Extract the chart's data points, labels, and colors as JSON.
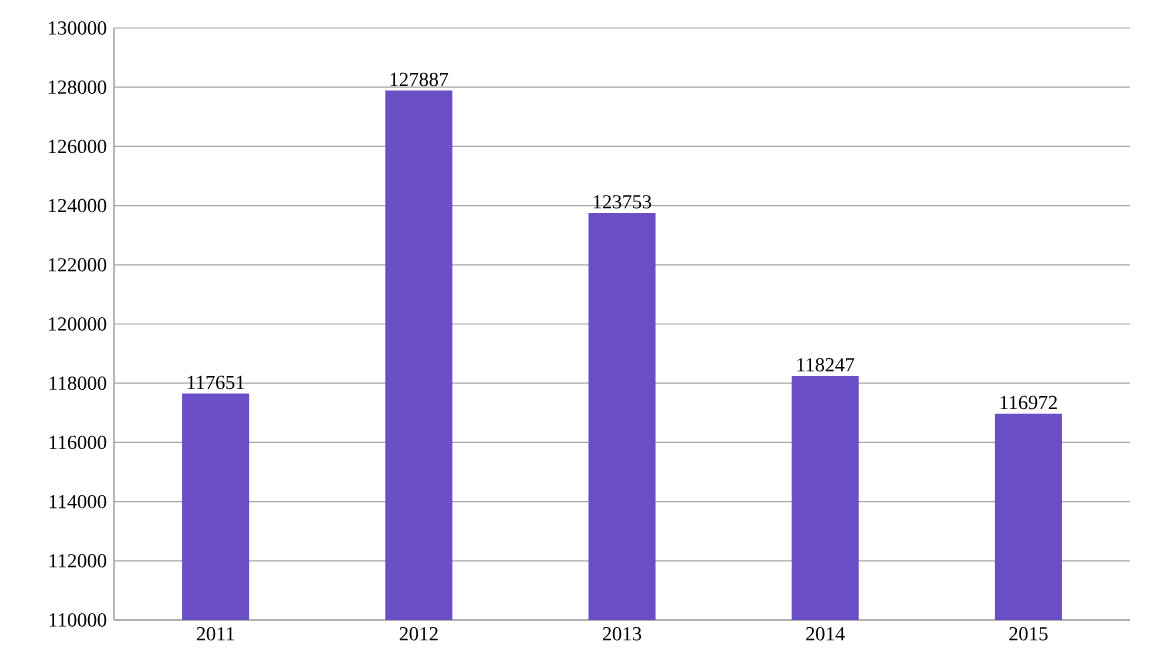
{
  "chart_data": {
    "type": "bar",
    "categories": [
      "2011",
      "2012",
      "2013",
      "2014",
      "2015"
    ],
    "values": [
      117651,
      127887,
      123753,
      118247,
      116972
    ],
    "color": "#6a4ec6",
    "ylim": [
      110000,
      130000
    ],
    "yticks": [
      110000,
      112000,
      114000,
      116000,
      118000,
      120000,
      122000,
      124000,
      126000,
      128000,
      130000
    ],
    "grid": "y",
    "data_labels": true
  }
}
